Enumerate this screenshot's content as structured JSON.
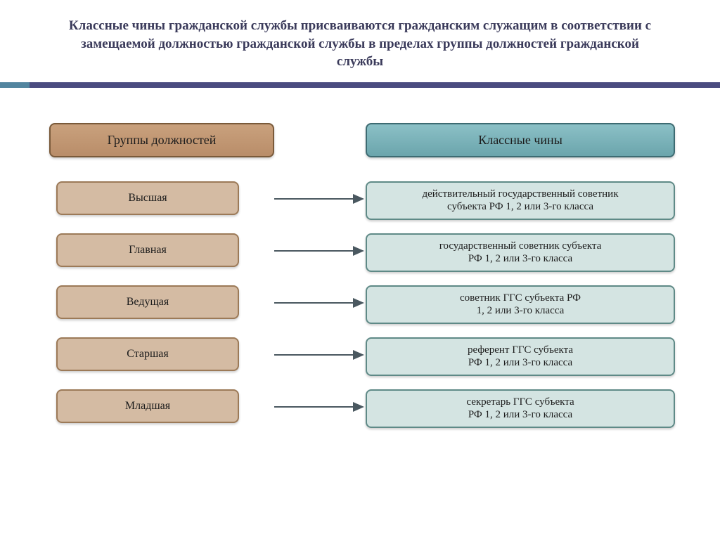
{
  "title": "Классные чины гражданской службы присваиваются гражданским служащим в соответствии с замещаемой должностью гражданской службы в пределах группы должностей гражданской службы",
  "accent": {
    "left_color": "#52859f",
    "right_color": "#4a4c80"
  },
  "columns": {
    "left_header": {
      "label": "Группы должностей",
      "fill": "#b98d69",
      "border": "#7a5a3a"
    },
    "right_header": {
      "label": "Классные чины",
      "fill": "#6ba5ac",
      "border": "#3d6b72"
    }
  },
  "left_style": {
    "fill": "#d4bba3",
    "border": "#9c7a58"
  },
  "right_style": {
    "fill": "#d4e4e2",
    "border": "#5f8a87"
  },
  "arrow_color": "#4a5860",
  "rows": [
    {
      "group": "Высшая",
      "rank": "действительный государственный советник субъекта РФ 1, 2 или 3-го класса"
    },
    {
      "group": "Главная",
      "rank": "государственный советник субъекта РФ 1, 2 или 3-го класса"
    },
    {
      "group": "Ведущая",
      "rank": "советник ГГС субъекта РФ 1, 2 или 3-го класса"
    },
    {
      "group": "Старшая",
      "rank": "референт ГГС  субъекта РФ 1, 2 или 3-го класса"
    },
    {
      "group": "Младшая",
      "rank": "секретарь ГГС субъекта РФ 1, 2 или 3-го класса"
    }
  ]
}
